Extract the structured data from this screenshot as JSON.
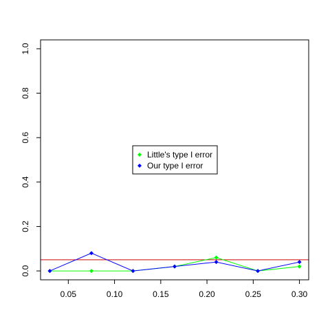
{
  "chart_data": {
    "type": "line",
    "title": "",
    "xlabel": "",
    "ylabel": "",
    "xlim": [
      0.02,
      0.31
    ],
    "ylim": [
      -0.04,
      1.04
    ],
    "x_ticks": [
      0.05,
      0.1,
      0.15,
      0.2,
      0.25,
      0.3
    ],
    "x_tick_labels": [
      "0.05",
      "0.10",
      "0.15",
      "0.20",
      "0.25",
      "0.30"
    ],
    "y_ticks": [
      0.0,
      0.2,
      0.4,
      0.6,
      0.8,
      1.0
    ],
    "y_tick_labels": [
      "0.0",
      "0.2",
      "0.4",
      "0.6",
      "0.8",
      "1.0"
    ],
    "x": [
      0.03,
      0.075,
      0.12,
      0.165,
      0.21,
      0.255,
      0.3
    ],
    "series": [
      {
        "name": "Little's type I error",
        "color": "#00ff00",
        "values": [
          0.0,
          0.0,
          0.0,
          0.02,
          0.06,
          0.0,
          0.02
        ]
      },
      {
        "name": "Our type I error",
        "color": "#0000ff",
        "values": [
          0.0,
          0.08,
          0.0,
          0.02,
          0.04,
          0.0,
          0.04
        ]
      }
    ],
    "reference_line": {
      "y": 0.05,
      "color": "#cc0000"
    },
    "legend_placement": "center",
    "grid": false
  }
}
